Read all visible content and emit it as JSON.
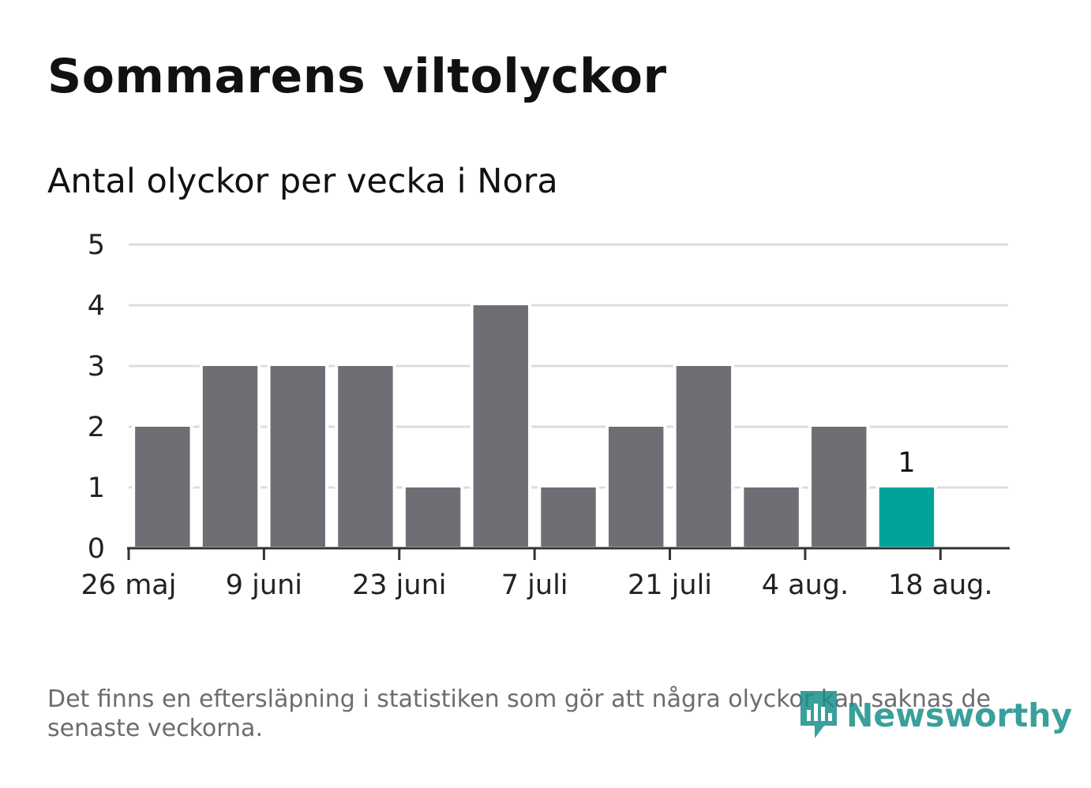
{
  "title": "Sommarens viltolyckor",
  "subtitle": "Antal olyckor per vecka i Nora",
  "footnote": "Det finns en eftersläpning i statistiken som gör att några olyckor kan saknas de senaste veckorna.",
  "logo_text": "Newsworthy",
  "colors": {
    "bar": "#6f6e74",
    "highlight": "#00a39a",
    "grid": "#dddddd",
    "axis": "#333333"
  },
  "chart_data": {
    "type": "bar",
    "x": [
      "2019-06-02",
      "2019-06-09",
      "2019-06-16",
      "2019-06-23",
      "2019-06-30",
      "2019-07-07",
      "2019-07-14",
      "2019-07-21",
      "2019-07-28",
      "2019-08-04",
      "2019-08-11",
      "2019-08-18"
    ],
    "values": [
      2,
      3,
      3,
      3,
      1,
      4,
      1,
      2,
      3,
      1,
      2,
      1
    ],
    "highlight_index": 11,
    "data_labels": [
      null,
      null,
      null,
      null,
      null,
      null,
      null,
      null,
      null,
      null,
      null,
      "1"
    ],
    "x_ticks": [
      {
        "date": "2019-05-26",
        "label": "26 maj"
      },
      {
        "date": "2019-06-09",
        "label": "9 juni"
      },
      {
        "date": "2019-06-23",
        "label": "23 juni"
      },
      {
        "date": "2019-07-07",
        "label": "7 juli"
      },
      {
        "date": "2019-07-21",
        "label": "21 juli"
      },
      {
        "date": "2019-08-04",
        "label": "4 aug."
      },
      {
        "date": "2019-08-18",
        "label": "18 aug."
      }
    ],
    "yticks": [
      "0",
      "1",
      "2",
      "3",
      "4",
      "5"
    ],
    "xlim": [
      "2019-05-26",
      "2019-08-25"
    ],
    "ylim": [
      0,
      5
    ],
    "grid": true,
    "legend": "none"
  }
}
